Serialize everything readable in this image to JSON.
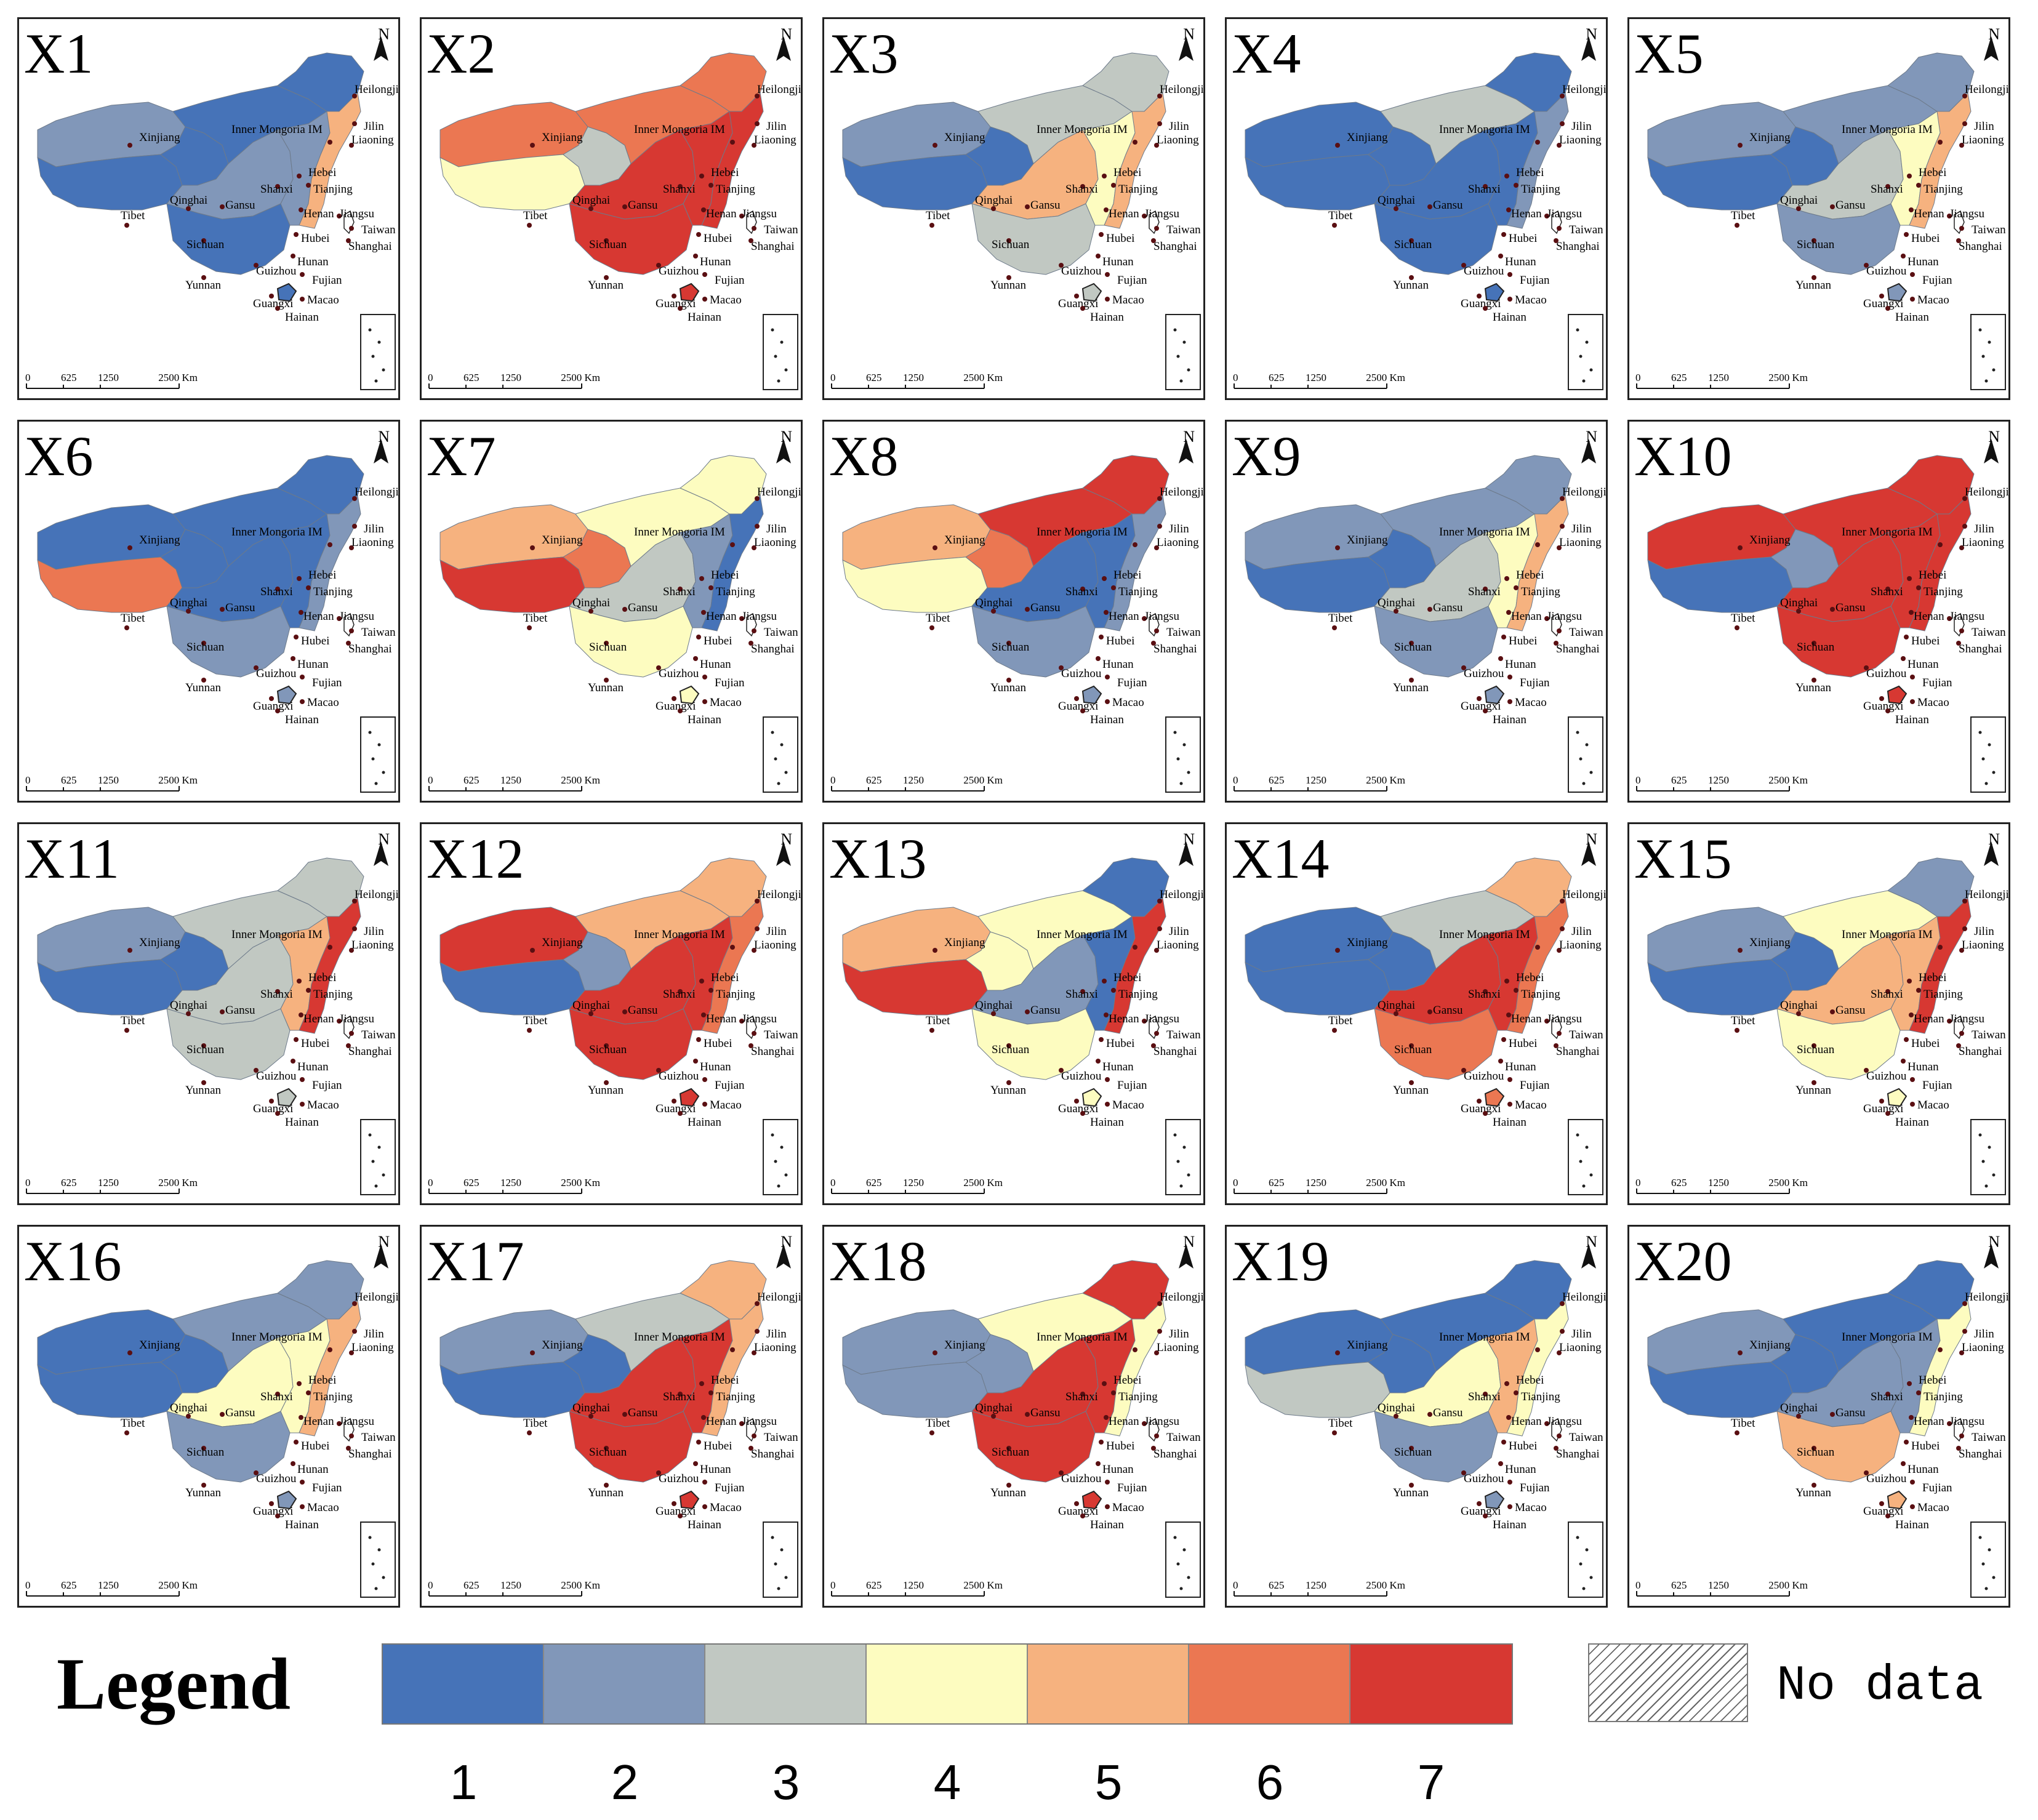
{
  "panels": [
    {
      "label": "X1",
      "colors": {
        "west": 2,
        "tibet": 1,
        "qinghai": 1,
        "north": 1,
        "northeast": 1,
        "center": 2,
        "south": 1,
        "east": 2,
        "coast": 5
      }
    },
    {
      "label": "X2",
      "colors": {
        "west": 6,
        "tibet": 4,
        "qinghai": 3,
        "north": 6,
        "northeast": 6,
        "center": 7,
        "south": 7,
        "east": 7,
        "coast": 7
      }
    },
    {
      "label": "X3",
      "colors": {
        "west": 2,
        "tibet": 1,
        "qinghai": 1,
        "north": 3,
        "northeast": 3,
        "center": 5,
        "south": 3,
        "east": 4,
        "coast": 5
      }
    },
    {
      "label": "X4",
      "colors": {
        "west": 1,
        "tibet": 1,
        "qinghai": 1,
        "north": 3,
        "northeast": 1,
        "center": 1,
        "south": 1,
        "east": 1,
        "coast": 2
      }
    },
    {
      "label": "X5",
      "colors": {
        "west": 2,
        "tibet": 1,
        "qinghai": 1,
        "north": 2,
        "northeast": 2,
        "center": 3,
        "south": 2,
        "east": 4,
        "coast": 5
      }
    },
    {
      "label": "X6",
      "colors": {
        "west": 1,
        "tibet": 6,
        "qinghai": 1,
        "north": 1,
        "northeast": 1,
        "center": 1,
        "south": 2,
        "east": 1,
        "coast": 2
      }
    },
    {
      "label": "X7",
      "colors": {
        "west": 5,
        "tibet": 7,
        "qinghai": 6,
        "north": 4,
        "northeast": 4,
        "center": 3,
        "south": 4,
        "east": 2,
        "coast": 1
      }
    },
    {
      "label": "X8",
      "colors": {
        "west": 5,
        "tibet": 4,
        "qinghai": 6,
        "north": 7,
        "northeast": 7,
        "center": 1,
        "south": 2,
        "east": 1,
        "coast": 2
      }
    },
    {
      "label": "X9",
      "colors": {
        "west": 2,
        "tibet": 1,
        "qinghai": 1,
        "north": 2,
        "northeast": 2,
        "center": 3,
        "south": 2,
        "east": 4,
        "coast": 5
      }
    },
    {
      "label": "X10",
      "colors": {
        "west": 7,
        "tibet": 1,
        "qinghai": 2,
        "north": 7,
        "northeast": 7,
        "center": 7,
        "south": 7,
        "east": 7,
        "coast": 7
      }
    },
    {
      "label": "X11",
      "colors": {
        "west": 2,
        "tibet": 1,
        "qinghai": 1,
        "north": 3,
        "northeast": 3,
        "center": 3,
        "south": 3,
        "east": 5,
        "coast": 7
      }
    },
    {
      "label": "X12",
      "colors": {
        "west": 7,
        "tibet": 1,
        "qinghai": 2,
        "north": 5,
        "northeast": 5,
        "center": 7,
        "south": 7,
        "east": 7,
        "coast": 6
      }
    },
    {
      "label": "X13",
      "colors": {
        "west": 5,
        "tibet": 7,
        "qinghai": 4,
        "north": 4,
        "northeast": 1,
        "center": 2,
        "south": 4,
        "east": 1,
        "coast": 7
      }
    },
    {
      "label": "X14",
      "colors": {
        "west": 1,
        "tibet": 1,
        "qinghai": 1,
        "north": 3,
        "northeast": 5,
        "center": 7,
        "south": 6,
        "east": 7,
        "coast": 6
      }
    },
    {
      "label": "X15",
      "colors": {
        "west": 2,
        "tibet": 1,
        "qinghai": 1,
        "north": 4,
        "northeast": 2,
        "center": 5,
        "south": 4,
        "east": 5,
        "coast": 7
      }
    },
    {
      "label": "X16",
      "colors": {
        "west": 1,
        "tibet": 1,
        "qinghai": 1,
        "north": 2,
        "northeast": 2,
        "center": 4,
        "south": 2,
        "east": 4,
        "coast": 5
      }
    },
    {
      "label": "X17",
      "colors": {
        "west": 2,
        "tibet": 1,
        "qinghai": 1,
        "north": 3,
        "northeast": 5,
        "center": 7,
        "south": 7,
        "east": 7,
        "coast": 5
      }
    },
    {
      "label": "X18",
      "colors": {
        "west": 2,
        "tibet": 2,
        "qinghai": 2,
        "north": 4,
        "northeast": 7,
        "center": 7,
        "south": 7,
        "east": 7,
        "coast": 4
      }
    },
    {
      "label": "X19",
      "colors": {
        "west": 1,
        "tibet": 3,
        "qinghai": 1,
        "north": 1,
        "northeast": 1,
        "center": 4,
        "south": 2,
        "east": 5,
        "coast": 4
      }
    },
    {
      "label": "X20",
      "colors": {
        "west": 2,
        "tibet": 1,
        "qinghai": 1,
        "north": 1,
        "northeast": 1,
        "center": 2,
        "south": 5,
        "east": 2,
        "coast": 4
      }
    }
  ],
  "places": [
    "Xinjiang",
    "Tibet",
    "Qinghai",
    "Gansu",
    "Sichuan",
    "Yunnan",
    "Guizhou",
    "Guangxi",
    "Hainan",
    "Macao",
    "Taiwan",
    "Fujian",
    "Hunan",
    "Hubei",
    "Henan",
    "Shanxi",
    "Hebei",
    "Tianjing",
    "Jiangsu",
    "Shanghai",
    "Liaoning",
    "Jilin",
    "Heilongjiang",
    "Inner Mongoria IM"
  ],
  "scale_labels": [
    "0",
    "625",
    "1250",
    "2500 Km"
  ],
  "north_label": "N",
  "legend": {
    "title": "Legend",
    "classes": [
      {
        "value": "1",
        "color": "#4673b8"
      },
      {
        "value": "2",
        "color": "#8197b9"
      },
      {
        "value": "3",
        "color": "#c1c8c2"
      },
      {
        "value": "4",
        "color": "#fdfcc0"
      },
      {
        "value": "5",
        "color": "#f6b27f"
      },
      {
        "value": "6",
        "color": "#eb7752"
      },
      {
        "value": "7",
        "color": "#d73832"
      }
    ],
    "no_data_label": "No data"
  }
}
